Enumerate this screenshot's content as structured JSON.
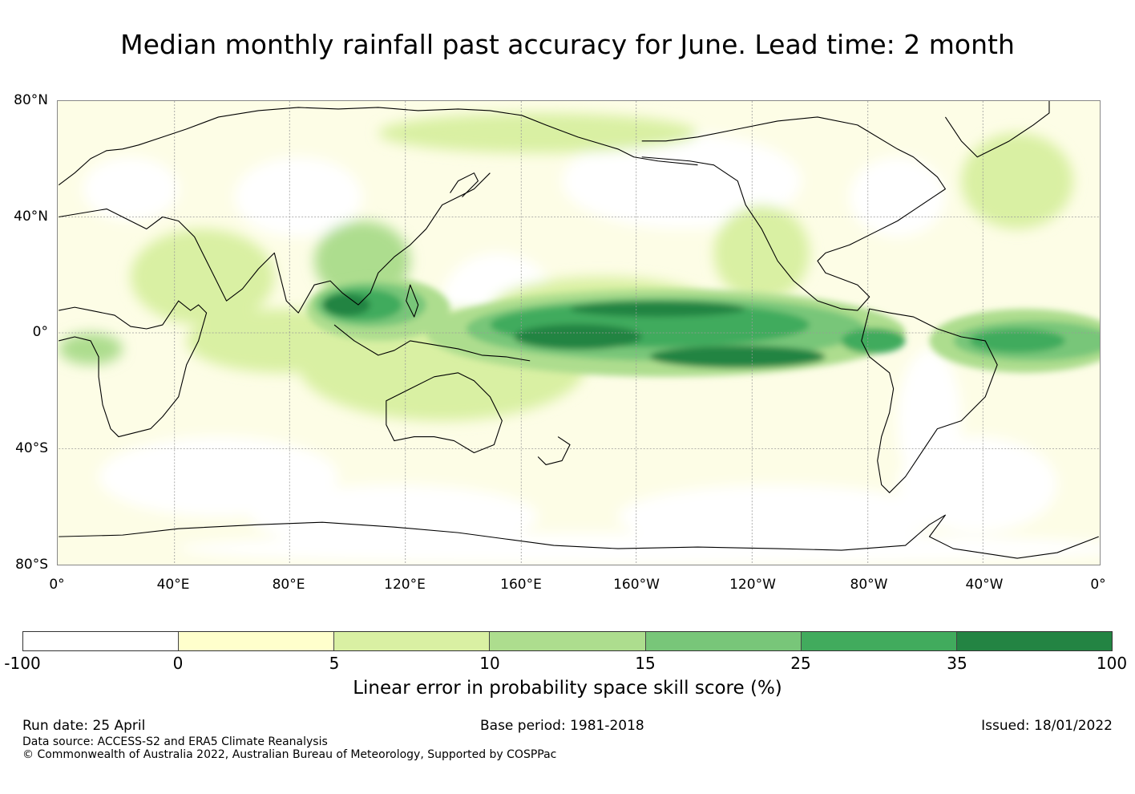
{
  "title": "Median monthly rainfall past accuracy for June. Lead time: 2 month",
  "map": {
    "lat_labels": [
      "80°N",
      "40°N",
      "0°",
      "40°S",
      "80°S"
    ],
    "lon_labels": [
      "0°",
      "40°E",
      "80°E",
      "120°E",
      "160°E",
      "160°W",
      "120°W",
      "80°W",
      "40°W",
      "0°"
    ],
    "background_color": "#fdfde6",
    "coastline_color": "#000000",
    "gridline_color": "#999999"
  },
  "colorbar": {
    "ticks": [
      "-100",
      "0",
      "5",
      "10",
      "15",
      "25",
      "35",
      "100"
    ],
    "colors": [
      "#ffffff",
      "#ffffcc",
      "#d9f0a3",
      "#addd8e",
      "#78c679",
      "#41ab5d",
      "#238443"
    ],
    "label": "Linear error in probability space skill score (%)"
  },
  "footer": {
    "run_date": "Run date: 25 April",
    "base_period": "Base period: 1981-2018",
    "issued": "Issued: 18/01/2022",
    "data_source": "Data source: ACCESS-S2 and ERA5 Climate Reanalysis",
    "copyright": "© Commonwealth of Australia 2022, Australian Bureau of Meteorology, Supported by COSPPac"
  }
}
